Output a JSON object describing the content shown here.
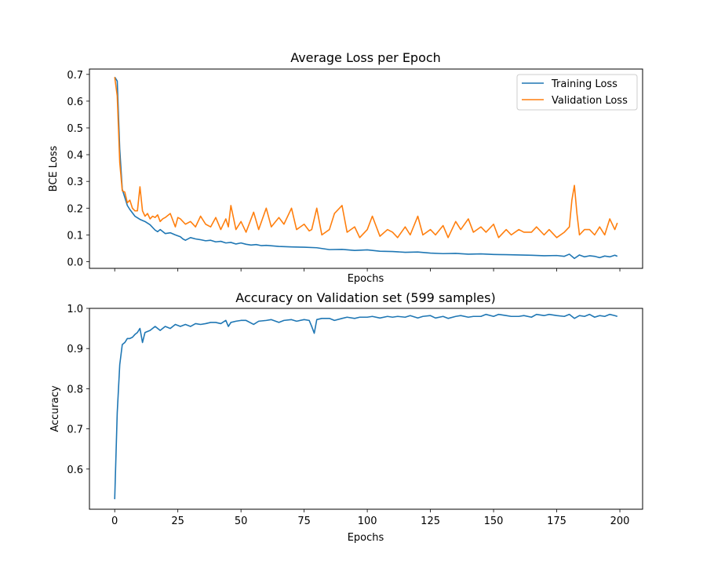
{
  "colors": {
    "training": "#1f77b4",
    "validation": "#ff7f0e"
  },
  "chart_data": [
    {
      "type": "line",
      "title": "Average Loss per Epoch",
      "xlabel": "Epochs",
      "ylabel": "BCE Loss",
      "xlim": [
        -10,
        209
      ],
      "ylim": [
        -0.025,
        0.72
      ],
      "xticks": [
        0,
        25,
        50,
        75,
        100,
        125,
        150,
        175,
        200
      ],
      "xtick_labels_visible": false,
      "yticks": [
        0.0,
        0.1,
        0.2,
        0.3,
        0.4,
        0.5,
        0.6,
        0.7
      ],
      "ytick_labels": [
        "0.0",
        "0.1",
        "0.2",
        "0.3",
        "0.4",
        "0.5",
        "0.6",
        "0.7"
      ],
      "legend": {
        "placement": "top-right"
      },
      "series": [
        {
          "name": "Training Loss",
          "color": "#1f77b4",
          "x": [
            0,
            1,
            2,
            3,
            4,
            5,
            6,
            8,
            10,
            12,
            14,
            16,
            17,
            18,
            20,
            22,
            24,
            26,
            27,
            28,
            30,
            32,
            34,
            36,
            38,
            40,
            42,
            44,
            46,
            48,
            50,
            52,
            54,
            56,
            58,
            60,
            65,
            70,
            75,
            80,
            85,
            90,
            95,
            100,
            105,
            110,
            115,
            120,
            125,
            130,
            135,
            140,
            145,
            150,
            155,
            160,
            165,
            170,
            175,
            178,
            180,
            182,
            184,
            186,
            188,
            190,
            192,
            194,
            196,
            198,
            199
          ],
          "values": [
            0.69,
            0.675,
            0.42,
            0.27,
            0.24,
            0.21,
            0.195,
            0.17,
            0.158,
            0.15,
            0.138,
            0.118,
            0.112,
            0.12,
            0.105,
            0.108,
            0.1,
            0.093,
            0.085,
            0.08,
            0.09,
            0.085,
            0.082,
            0.078,
            0.08,
            0.074,
            0.076,
            0.07,
            0.072,
            0.066,
            0.07,
            0.065,
            0.062,
            0.064,
            0.06,
            0.061,
            0.057,
            0.055,
            0.054,
            0.052,
            0.045,
            0.046,
            0.042,
            0.044,
            0.039,
            0.038,
            0.035,
            0.036,
            0.032,
            0.03,
            0.031,
            0.028,
            0.029,
            0.027,
            0.026,
            0.025,
            0.024,
            0.022,
            0.023,
            0.02,
            0.028,
            0.012,
            0.025,
            0.018,
            0.022,
            0.02,
            0.015,
            0.021,
            0.018,
            0.024,
            0.02
          ]
        },
        {
          "name": "Validation Loss",
          "color": "#ff7f0e",
          "x": [
            0,
            1,
            2,
            3,
            4,
            5,
            6,
            7,
            8,
            9,
            10,
            11,
            12,
            13,
            14,
            15,
            16,
            17,
            18,
            19,
            20,
            22,
            24,
            25,
            26,
            28,
            30,
            32,
            34,
            36,
            38,
            40,
            42,
            44,
            45,
            46,
            48,
            50,
            52,
            55,
            57,
            60,
            62,
            65,
            67,
            70,
            72,
            75,
            77,
            78,
            80,
            82,
            85,
            87,
            90,
            92,
            95,
            97,
            100,
            102,
            105,
            108,
            110,
            112,
            115,
            117,
            120,
            122,
            125,
            127,
            130,
            132,
            135,
            137,
            140,
            142,
            145,
            147,
            150,
            152,
            155,
            157,
            160,
            162,
            165,
            167,
            170,
            172,
            175,
            178,
            180,
            181,
            182,
            183,
            184,
            186,
            188,
            190,
            192,
            194,
            196,
            198,
            199
          ],
          "values": [
            0.69,
            0.62,
            0.37,
            0.265,
            0.26,
            0.22,
            0.23,
            0.2,
            0.19,
            0.19,
            0.28,
            0.19,
            0.17,
            0.18,
            0.16,
            0.17,
            0.165,
            0.175,
            0.15,
            0.16,
            0.165,
            0.18,
            0.13,
            0.165,
            0.16,
            0.14,
            0.15,
            0.13,
            0.17,
            0.14,
            0.13,
            0.165,
            0.12,
            0.16,
            0.13,
            0.21,
            0.12,
            0.15,
            0.11,
            0.185,
            0.12,
            0.2,
            0.13,
            0.165,
            0.14,
            0.2,
            0.12,
            0.14,
            0.115,
            0.12,
            0.2,
            0.1,
            0.12,
            0.18,
            0.21,
            0.11,
            0.13,
            0.09,
            0.12,
            0.17,
            0.095,
            0.12,
            0.11,
            0.09,
            0.13,
            0.1,
            0.17,
            0.1,
            0.12,
            0.1,
            0.135,
            0.09,
            0.15,
            0.12,
            0.16,
            0.11,
            0.13,
            0.11,
            0.14,
            0.09,
            0.12,
            0.1,
            0.12,
            0.11,
            0.11,
            0.13,
            0.1,
            0.12,
            0.09,
            0.11,
            0.13,
            0.23,
            0.285,
            0.18,
            0.1,
            0.12,
            0.12,
            0.1,
            0.13,
            0.1,
            0.16,
            0.12,
            0.145
          ]
        }
      ]
    },
    {
      "type": "line",
      "title": "Accuracy on Validation set (599 samples)",
      "xlabel": "Epochs",
      "ylabel": "Accuracy",
      "xlim": [
        -10,
        209
      ],
      "ylim": [
        0.5,
        1.0
      ],
      "xticks": [
        0,
        25,
        50,
        75,
        100,
        125,
        150,
        175,
        200
      ],
      "xtick_labels": [
        "0",
        "25",
        "50",
        "75",
        "100",
        "125",
        "150",
        "175",
        "200"
      ],
      "yticks": [
        0.6,
        0.7,
        0.8,
        0.9,
        1.0
      ],
      "ytick_labels": [
        "0.6",
        "0.7",
        "0.8",
        "0.9",
        "1.0"
      ],
      "series": [
        {
          "color": "#1f77b4",
          "x": [
            0,
            1,
            2,
            3,
            4,
            5,
            6,
            7,
            8,
            9,
            10,
            11,
            12,
            14,
            16,
            18,
            20,
            22,
            24,
            26,
            28,
            30,
            32,
            34,
            36,
            38,
            40,
            42,
            44,
            45,
            46,
            48,
            50,
            52,
            55,
            57,
            60,
            62,
            65,
            67,
            70,
            72,
            75,
            77,
            78,
            79,
            80,
            82,
            85,
            87,
            90,
            92,
            95,
            97,
            100,
            102,
            105,
            108,
            110,
            112,
            115,
            117,
            120,
            122,
            125,
            127,
            130,
            132,
            135,
            137,
            140,
            142,
            145,
            147,
            150,
            152,
            155,
            157,
            160,
            162,
            165,
            167,
            170,
            172,
            175,
            178,
            180,
            182,
            184,
            186,
            188,
            190,
            192,
            194,
            196,
            198,
            199
          ],
          "values": [
            0.525,
            0.74,
            0.86,
            0.91,
            0.915,
            0.925,
            0.925,
            0.928,
            0.935,
            0.94,
            0.95,
            0.915,
            0.94,
            0.945,
            0.955,
            0.945,
            0.955,
            0.95,
            0.96,
            0.955,
            0.96,
            0.955,
            0.962,
            0.96,
            0.962,
            0.965,
            0.965,
            0.962,
            0.97,
            0.955,
            0.965,
            0.968,
            0.97,
            0.97,
            0.96,
            0.968,
            0.97,
            0.972,
            0.965,
            0.97,
            0.972,
            0.968,
            0.972,
            0.97,
            0.955,
            0.938,
            0.972,
            0.975,
            0.975,
            0.97,
            0.975,
            0.978,
            0.975,
            0.978,
            0.978,
            0.98,
            0.976,
            0.98,
            0.978,
            0.98,
            0.978,
            0.982,
            0.976,
            0.98,
            0.982,
            0.976,
            0.98,
            0.975,
            0.98,
            0.982,
            0.978,
            0.98,
            0.98,
            0.985,
            0.98,
            0.985,
            0.982,
            0.98,
            0.98,
            0.982,
            0.978,
            0.985,
            0.982,
            0.985,
            0.982,
            0.98,
            0.985,
            0.975,
            0.982,
            0.98,
            0.985,
            0.978,
            0.982,
            0.98,
            0.985,
            0.982,
            0.98
          ]
        }
      ]
    }
  ]
}
